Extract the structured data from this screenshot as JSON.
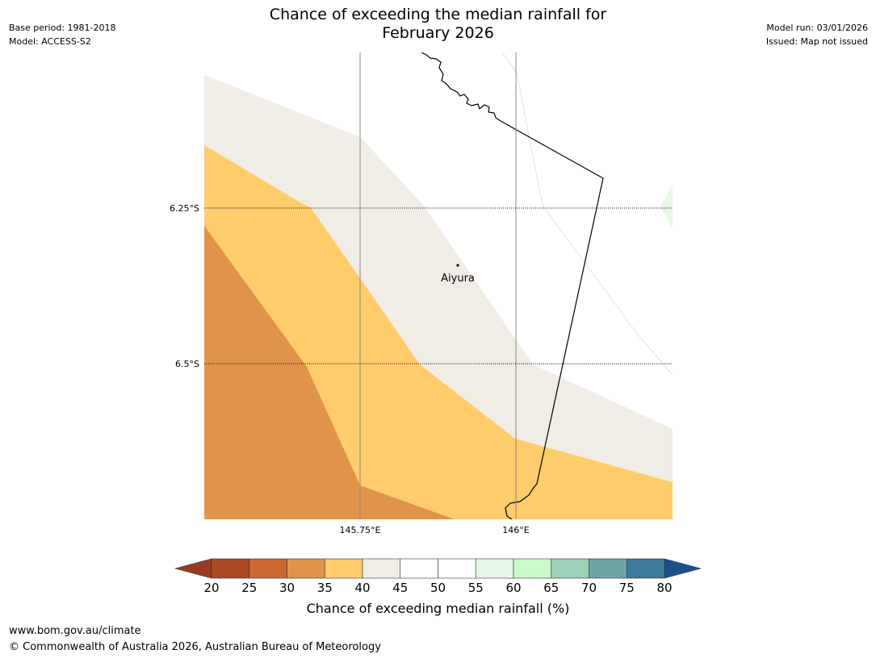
{
  "header": {
    "title_line1": "Chance of exceeding the median rainfall for",
    "title_line2": "February 2026",
    "base_period": "Base period: 1981-2018",
    "model": "Model: ACCESS-S2",
    "model_run": "Model run: 03/01/2026",
    "issued": "Issued: Map not issued"
  },
  "map": {
    "place_label": "Aiyura",
    "lat_labels": [
      "6.25°S",
      "6.5°S"
    ],
    "lon_labels": [
      "145.75°E",
      "146°E"
    ],
    "zone_colors": {
      "30-35": "#e0944a",
      "35-40": "#fecc6a",
      "40-45": "#f0ece6",
      "55-60": "#e8f6e8"
    }
  },
  "colorbar": {
    "title": "Chance of exceeding median rainfall (%)",
    "tick_labels": [
      "20",
      "25",
      "30",
      "35",
      "40",
      "45",
      "50",
      "55",
      "60",
      "65",
      "70",
      "75",
      "80"
    ],
    "colors": [
      "#ab4a24",
      "#cc6633",
      "#e0944a",
      "#fecc6a",
      "#f0ece6",
      "#ffffff",
      "#ffffff",
      "#e8f6e8",
      "#c8fbc8",
      "#9dd0b8",
      "#6ea6a8",
      "#3d7a9c"
    ],
    "extend_low_color": "#9a3a22",
    "extend_high_color": "#1a4f8a"
  },
  "footer": {
    "website": "www.bom.gov.au/climate",
    "copyright": "© Commonwealth of Australia 2026, Australian Bureau of Meteorology"
  }
}
